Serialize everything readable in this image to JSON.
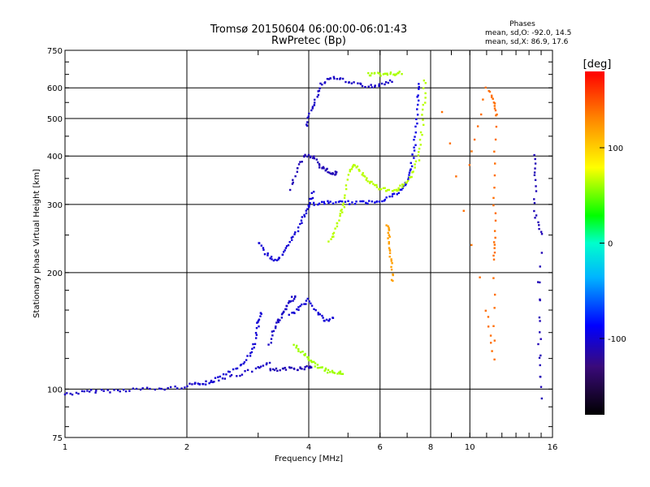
{
  "chart_data": {
    "type": "scatter",
    "title": "Tromsø 20150604 06:00:00-06:01:43",
    "subtitle": "RwPretec (Bp)",
    "xlabel": "Frequency [MHz]",
    "ylabel": "Stationary phase Virtual Height [km]",
    "x_scale": "log",
    "y_scale": "log",
    "xlim": [
      1,
      16
    ],
    "ylim": [
      75,
      750
    ],
    "x_ticks": [
      "1",
      "2",
      "4",
      "6",
      "8",
      "10",
      "16"
    ],
    "x_tick_values": [
      1,
      2,
      4,
      6,
      8,
      10,
      16
    ],
    "y_ticks": [
      "75",
      "100",
      "200",
      "300",
      "400",
      "500",
      "600",
      "750"
    ],
    "y_tick_values": [
      75,
      100,
      200,
      300,
      400,
      500,
      600,
      750
    ],
    "grid": true,
    "colorbar": {
      "label": "[deg]",
      "range": [
        -180,
        180
      ],
      "ticks": [
        "100",
        "0",
        "-100"
      ],
      "tick_values": [
        100,
        0,
        -100
      ]
    },
    "stats": {
      "heading": "Phases",
      "line1": "mean, sd,O: -92.0, 14.5",
      "line2": "mean, sd,X:  86.9, 17.6"
    },
    "traces": [
      {
        "phase": -105,
        "points": [
          [
            1.0,
            97
          ],
          [
            1.1,
            98
          ],
          [
            1.2,
            99
          ],
          [
            1.35,
            99
          ],
          [
            1.5,
            100
          ],
          [
            1.7,
            100
          ],
          [
            1.9,
            101
          ],
          [
            2.1,
            103
          ],
          [
            2.4,
            106
          ],
          [
            2.7,
            109
          ],
          [
            3.0,
            113
          ],
          [
            3.2,
            116
          ]
        ]
      },
      {
        "phase": -100,
        "points": [
          [
            2.1,
            103
          ],
          [
            2.3,
            104
          ],
          [
            2.5,
            110
          ],
          [
            2.7,
            115
          ],
          [
            2.85,
            122
          ],
          [
            2.95,
            132
          ],
          [
            3.0,
            148
          ],
          [
            3.05,
            157
          ]
        ]
      },
      {
        "phase": -110,
        "points": [
          [
            3.2,
            112
          ],
          [
            3.4,
            112
          ],
          [
            3.6,
            113
          ],
          [
            3.8,
            113
          ],
          [
            4.0,
            114
          ],
          [
            4.05,
            114
          ]
        ]
      },
      {
        "phase": -105,
        "points": [
          [
            3.2,
            130
          ],
          [
            3.3,
            145
          ],
          [
            3.4,
            152
          ],
          [
            3.5,
            160
          ],
          [
            3.6,
            168
          ],
          [
            3.7,
            175
          ]
        ]
      },
      {
        "phase": -100,
        "points": [
          [
            3.6,
            155
          ],
          [
            3.8,
            162
          ],
          [
            4.0,
            170
          ],
          [
            4.2,
            158
          ],
          [
            4.4,
            150
          ],
          [
            4.6,
            152
          ]
        ]
      },
      {
        "phase": 60,
        "points": [
          [
            3.7,
            130
          ],
          [
            3.85,
            124
          ],
          [
            4.0,
            120
          ],
          [
            4.15,
            116
          ],
          [
            4.3,
            113
          ],
          [
            4.5,
            111
          ],
          [
            4.7,
            110
          ],
          [
            4.85,
            110
          ]
        ]
      },
      {
        "phase": -100,
        "points": [
          [
            3.0,
            240
          ],
          [
            3.15,
            222
          ],
          [
            3.3,
            215
          ],
          [
            3.45,
            222
          ],
          [
            3.6,
            238
          ],
          [
            3.75,
            258
          ],
          [
            3.9,
            280
          ],
          [
            4.0,
            300
          ],
          [
            4.1,
            322
          ]
        ]
      },
      {
        "phase": -95,
        "points": [
          [
            4.0,
            300
          ],
          [
            4.3,
            302
          ],
          [
            4.6,
            304
          ],
          [
            5.0,
            303
          ],
          [
            5.4,
            303
          ],
          [
            5.8,
            305
          ],
          [
            6.2,
            310
          ],
          [
            6.6,
            320
          ],
          [
            6.9,
            335
          ],
          [
            7.1,
            360
          ],
          [
            7.25,
            400
          ],
          [
            7.35,
            460
          ],
          [
            7.45,
            540
          ],
          [
            7.5,
            620
          ]
        ]
      },
      {
        "phase": -110,
        "points": [
          [
            3.6,
            330
          ],
          [
            3.75,
            370
          ],
          [
            3.9,
            400
          ],
          [
            4.1,
            400
          ],
          [
            4.25,
            378
          ],
          [
            4.4,
            370
          ],
          [
            4.55,
            362
          ],
          [
            4.7,
            360
          ]
        ]
      },
      {
        "phase": -105,
        "points": [
          [
            3.95,
            480
          ],
          [
            4.05,
            520
          ],
          [
            4.15,
            560
          ],
          [
            4.3,
            610
          ],
          [
            4.5,
            640
          ],
          [
            4.8,
            630
          ],
          [
            5.2,
            615
          ],
          [
            5.6,
            605
          ],
          [
            6.0,
            610
          ],
          [
            6.4,
            625
          ]
        ]
      },
      {
        "phase": 65,
        "points": [
          [
            4.5,
            240
          ],
          [
            4.65,
            258
          ],
          [
            4.8,
            282
          ],
          [
            4.9,
            300
          ],
          [
            5.0,
            360
          ],
          [
            5.15,
            380
          ],
          [
            5.3,
            370
          ],
          [
            5.5,
            352
          ],
          [
            5.7,
            340
          ],
          [
            6.0,
            330
          ],
          [
            6.3,
            325
          ],
          [
            6.6,
            328
          ],
          [
            6.9,
            338
          ],
          [
            7.2,
            356
          ],
          [
            7.45,
            390
          ],
          [
            7.6,
            450
          ],
          [
            7.7,
            540
          ],
          [
            7.75,
            630
          ]
        ]
      },
      {
        "phase": 62,
        "points": [
          [
            5.6,
            650
          ],
          [
            5.9,
            650
          ],
          [
            6.2,
            650
          ],
          [
            6.5,
            652
          ],
          [
            6.8,
            655
          ]
        ]
      },
      {
        "phase": 120,
        "points": [
          [
            6.25,
            265
          ],
          [
            6.3,
            250
          ],
          [
            6.35,
            230
          ],
          [
            6.4,
            210
          ],
          [
            6.45,
            190
          ]
        ]
      },
      {
        "phase": 140,
        "points": [
          [
            10.0,
            380
          ],
          [
            11.0,
            600
          ],
          [
            11.5,
            550
          ],
          [
            11.6,
            510
          ],
          [
            11.5,
            330
          ],
          [
            11.5,
            245
          ],
          [
            11.5,
            215
          ],
          [
            11.5,
            120
          ],
          [
            11.0,
            160
          ],
          [
            8.5,
            520
          ]
        ]
      },
      {
        "phase": -110,
        "points": [
          [
            14.5,
            400
          ],
          [
            14.5,
            345
          ],
          [
            14.5,
            280
          ],
          [
            15.0,
            250
          ],
          [
            14.8,
            140
          ],
          [
            15.0,
            95
          ],
          [
            14.8,
            190
          ]
        ]
      }
    ]
  }
}
